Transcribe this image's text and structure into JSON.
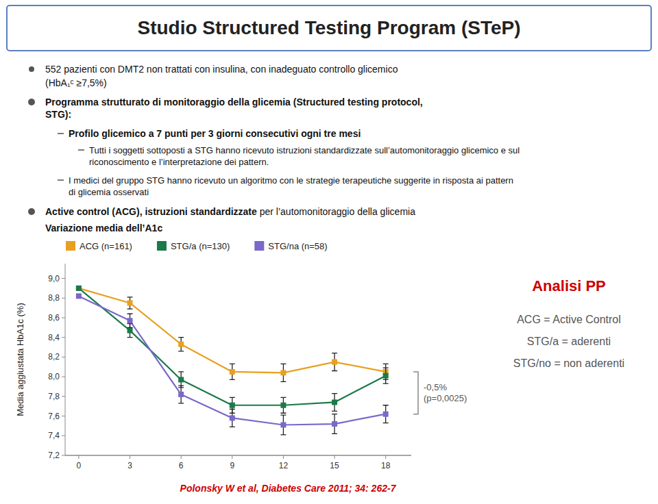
{
  "chart_data": {
    "type": "line",
    "title": "Studio Structured Testing Program (STeP)",
    "y_label": "Media aggiustata HbA1c (%)",
    "x": [
      0,
      3,
      6,
      9,
      12,
      15,
      18
    ],
    "xlim": [
      -0.8,
      19.5
    ],
    "xticks": [
      0,
      3,
      6,
      9,
      12,
      15,
      18
    ],
    "ylim": [
      7.2,
      9.15
    ],
    "yticks": [
      {
        "value": 7.2,
        "label": "7,2"
      },
      {
        "value": 7.4,
        "label": "7,4"
      },
      {
        "value": 7.6,
        "label": "7,6"
      },
      {
        "value": 7.8,
        "label": "7,8"
      },
      {
        "value": 8.0,
        "label": "8,0"
      },
      {
        "value": 8.2,
        "label": "8,2"
      },
      {
        "value": 8.4,
        "label": "8,4"
      },
      {
        "value": 8.6,
        "label": "8,6"
      },
      {
        "value": 8.8,
        "label": "8,8"
      },
      {
        "value": 9.0,
        "label": "9,0"
      }
    ],
    "grid": false,
    "series": [
      {
        "name": "ACG (n=161)",
        "color": "#E8A020",
        "marker": "square",
        "values": [
          8.9,
          8.75,
          8.33,
          8.05,
          8.04,
          8.15,
          8.05
        ],
        "errors": [
          0.0,
          0.06,
          0.07,
          0.08,
          0.09,
          0.09,
          0.08
        ]
      },
      {
        "name": "STG/a (n=130)",
        "color": "#1A7A4A",
        "marker": "square",
        "values": [
          8.9,
          8.47,
          7.97,
          7.71,
          7.71,
          7.74,
          8.01
        ],
        "errors": [
          0.0,
          0.07,
          0.08,
          0.08,
          0.08,
          0.09,
          0.08
        ]
      },
      {
        "name": "STG/na (n=58)",
        "color": "#7B68C8",
        "marker": "square",
        "values": [
          8.82,
          8.57,
          7.82,
          7.58,
          7.51,
          7.52,
          7.62
        ],
        "errors": [
          0.0,
          0.07,
          0.09,
          0.09,
          0.1,
          0.1,
          0.09
        ]
      }
    ],
    "annotations": [
      {
        "text": "552 pazienti con DMT2 non trattati con insulina, con inadeguato controllo glicemico"
      },
      {
        "text": "(HbA₁ᶜ ≥7,5%)"
      },
      {
        "text": "Programma strutturato di monitoraggio della glicemia (Structured testing protocol,\nSTG):"
      },
      {
        "text": "Profilo glicemico a 7 punti per 3 giorni consecutivi ogni tre mesi"
      },
      {
        "text": "Tutti i soggetti sottoposti a STG hanno ricevuto istruzioni standardizzate sull’automonitoraggio glicemico e sul\nriconoscimento e l’interpretazione dei pattern."
      },
      {
        "text": "I medici del gruppo STG hanno ricevuto un algoritmo con le strategie terapeutiche suggerite in risposta ai pattern\ndi glicemia osservati"
      },
      {
        "text": "Active control (ACG), istruzioni standardizzate"
      },
      {
        "text": " per l’automonitoraggio della glicemia"
      },
      {
        "text": "Variazione media dell’A1c"
      },
      {
        "text": "-0,5%\n(p=0,0025)"
      },
      {
        "text": "Analisi PP",
        "color": "#CC0000"
      },
      {
        "text": "ACG = Active Control\nSTG/a = aderenti\nSTG/no = non aderenti"
      },
      {
        "text": "Polonsky W et al, Diabetes Care 2011; 34: 262-7",
        "color": "#CC0000"
      }
    ]
  }
}
